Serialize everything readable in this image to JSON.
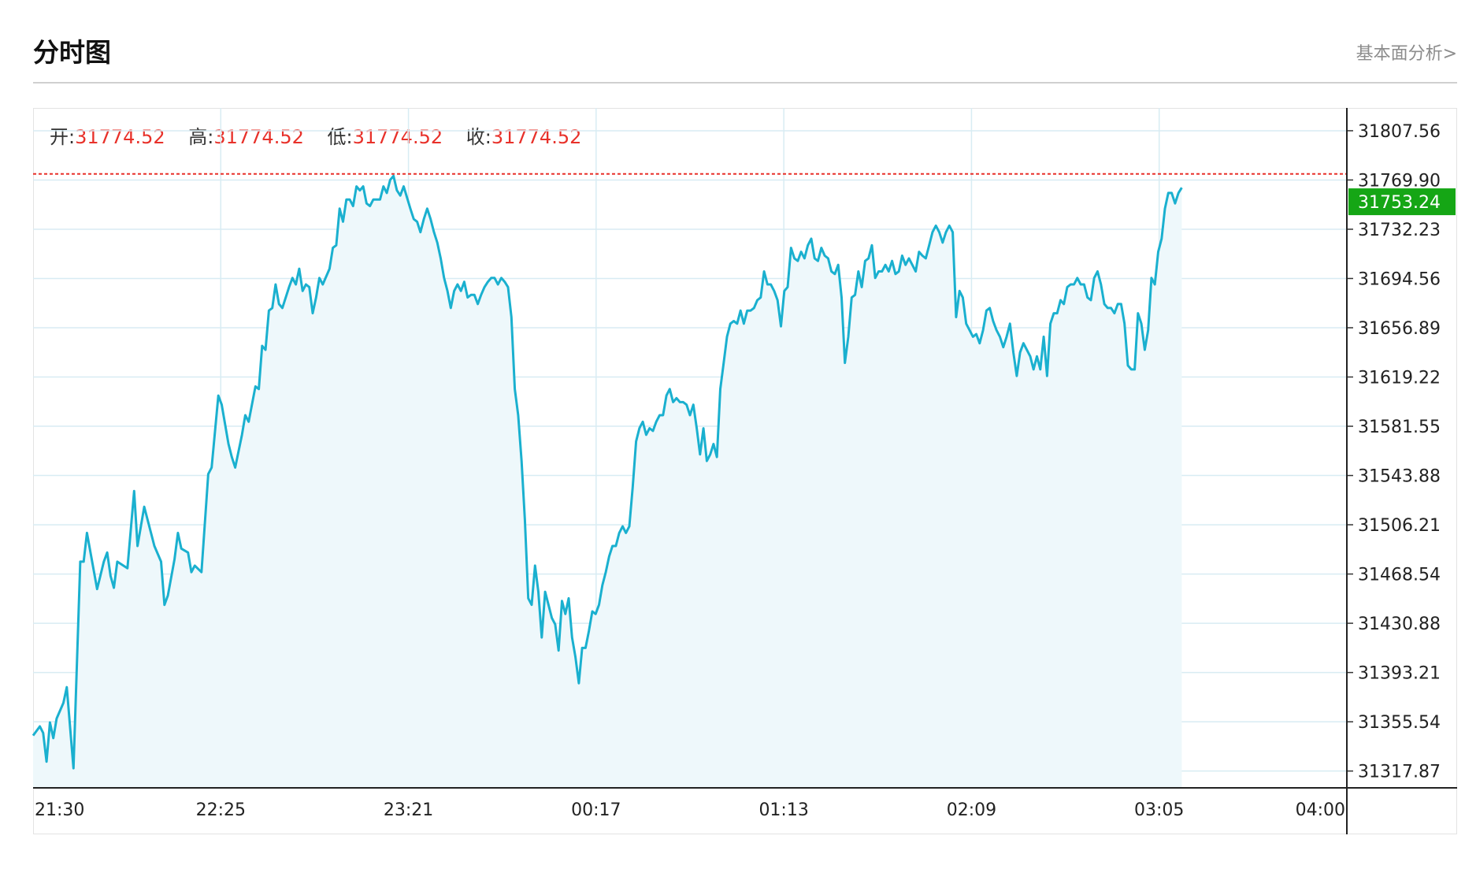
{
  "header": {
    "title": "分时图",
    "link_label": "基本面分析>"
  },
  "ohlc": [
    {
      "label": "开:",
      "value": "31774.52"
    },
    {
      "label": "高:",
      "value": "31774.52"
    },
    {
      "label": "低:",
      "value": "31774.52"
    },
    {
      "label": "收:",
      "value": "31774.52"
    }
  ],
  "colors": {
    "line": "#1ab0cf",
    "fill": "#eef8fb",
    "grid": "#d8ecf3",
    "ref_line": "#e8312a",
    "price_tag_bg": "#15a615",
    "value_text": "#e8312a"
  },
  "chart_data": {
    "type": "area",
    "reference_price": 31774.52,
    "current_price_label": "31753.24",
    "y_ticks": [
      "31807.56",
      "31769.90",
      "31732.23",
      "31694.56",
      "31656.89",
      "31619.22",
      "31581.55",
      "31543.88",
      "31506.21",
      "31468.54",
      "31430.88",
      "31393.21",
      "31355.54",
      "31317.87"
    ],
    "x_ticks": [
      "21:30",
      "22:25",
      "23:21",
      "00:17",
      "01:13",
      "02:09",
      "03:05",
      "04:00"
    ],
    "ylim": [
      31305,
      31825
    ],
    "x_range_minutes": [
      0,
      390
    ],
    "grid": true,
    "points": [
      [
        0,
        31345
      ],
      [
        2,
        31352
      ],
      [
        3,
        31347
      ],
      [
        4,
        31325
      ],
      [
        5,
        31355
      ],
      [
        6,
        31343
      ],
      [
        7,
        31358
      ],
      [
        9,
        31370
      ],
      [
        10,
        31382
      ],
      [
        12,
        31320
      ],
      [
        14,
        31478
      ],
      [
        15,
        31478
      ],
      [
        16,
        31500
      ],
      [
        19,
        31457
      ],
      [
        21,
        31478
      ],
      [
        22,
        31485
      ],
      [
        23,
        31467
      ],
      [
        24,
        31458
      ],
      [
        25,
        31478
      ],
      [
        28,
        31473
      ],
      [
        30,
        31532
      ],
      [
        31,
        31490
      ],
      [
        33,
        31520
      ],
      [
        35,
        31500
      ],
      [
        36,
        31490
      ],
      [
        38,
        31478
      ],
      [
        39,
        31445
      ],
      [
        40,
        31452
      ],
      [
        42,
        31480
      ],
      [
        43,
        31500
      ],
      [
        44,
        31488
      ],
      [
        46,
        31485
      ],
      [
        47,
        31470
      ],
      [
        48,
        31475
      ],
      [
        50,
        31470
      ],
      [
        52,
        31545
      ],
      [
        53,
        31550
      ],
      [
        55,
        31605
      ],
      [
        56,
        31598
      ],
      [
        58,
        31568
      ],
      [
        59,
        31558
      ],
      [
        60,
        31550
      ],
      [
        62,
        31575
      ],
      [
        63,
        31590
      ],
      [
        64,
        31585
      ],
      [
        66,
        31612
      ],
      [
        67,
        31610
      ],
      [
        68,
        31643
      ],
      [
        69,
        31640
      ],
      [
        70,
        31670
      ],
      [
        71,
        31672
      ],
      [
        72,
        31690
      ],
      [
        73,
        31675
      ],
      [
        74,
        31672
      ],
      [
        76,
        31688
      ],
      [
        77,
        31695
      ],
      [
        78,
        31690
      ],
      [
        79,
        31702
      ],
      [
        80,
        31685
      ],
      [
        81,
        31690
      ],
      [
        82,
        31688
      ],
      [
        83,
        31668
      ],
      [
        84,
        31680
      ],
      [
        85,
        31695
      ],
      [
        86,
        31690
      ],
      [
        88,
        31702
      ],
      [
        89,
        31718
      ],
      [
        90,
        31720
      ],
      [
        91,
        31748
      ],
      [
        92,
        31738
      ],
      [
        93,
        31755
      ],
      [
        94,
        31755
      ],
      [
        95,
        31750
      ],
      [
        96,
        31765
      ],
      [
        97,
        31762
      ],
      [
        98,
        31765
      ],
      [
        99,
        31752
      ],
      [
        100,
        31750
      ],
      [
        101,
        31755
      ],
      [
        103,
        31755
      ],
      [
        104,
        31765
      ],
      [
        105,
        31760
      ],
      [
        106,
        31770
      ],
      [
        107,
        31773
      ],
      [
        108,
        31762
      ],
      [
        109,
        31758
      ],
      [
        110,
        31765
      ],
      [
        112,
        31748
      ],
      [
        113,
        31740
      ],
      [
        114,
        31738
      ],
      [
        115,
        31730
      ],
      [
        116,
        31740
      ],
      [
        117,
        31748
      ],
      [
        118,
        31740
      ],
      [
        119,
        31730
      ],
      [
        120,
        31722
      ],
      [
        121,
        31710
      ],
      [
        122,
        31695
      ],
      [
        123,
        31685
      ],
      [
        124,
        31672
      ],
      [
        125,
        31685
      ],
      [
        126,
        31690
      ],
      [
        127,
        31685
      ],
      [
        128,
        31692
      ],
      [
        129,
        31680
      ],
      [
        130,
        31682
      ],
      [
        131,
        31682
      ],
      [
        132,
        31675
      ],
      [
        133,
        31682
      ],
      [
        134,
        31688
      ],
      [
        135,
        31692
      ],
      [
        136,
        31695
      ],
      [
        137,
        31695
      ],
      [
        138,
        31690
      ],
      [
        139,
        31695
      ],
      [
        140,
        31692
      ],
      [
        141,
        31688
      ],
      [
        142,
        31665
      ],
      [
        143,
        31610
      ],
      [
        144,
        31590
      ],
      [
        145,
        31555
      ],
      [
        146,
        31510
      ],
      [
        147,
        31450
      ],
      [
        148,
        31445
      ],
      [
        149,
        31475
      ],
      [
        150,
        31455
      ],
      [
        151,
        31420
      ],
      [
        152,
        31455
      ],
      [
        153,
        31445
      ],
      [
        154,
        31435
      ],
      [
        155,
        31430
      ],
      [
        156,
        31410
      ],
      [
        157,
        31448
      ],
      [
        158,
        31438
      ],
      [
        159,
        31450
      ],
      [
        160,
        31420
      ],
      [
        161,
        31405
      ],
      [
        162,
        31385
      ],
      [
        163,
        31412
      ],
      [
        164,
        31412
      ],
      [
        165,
        31425
      ],
      [
        166,
        31440
      ],
      [
        167,
        31438
      ],
      [
        168,
        31445
      ],
      [
        169,
        31460
      ],
      [
        170,
        31470
      ],
      [
        171,
        31482
      ],
      [
        172,
        31490
      ],
      [
        173,
        31490
      ],
      [
        174,
        31500
      ],
      [
        175,
        31505
      ],
      [
        176,
        31500
      ],
      [
        177,
        31505
      ],
      [
        178,
        31535
      ],
      [
        179,
        31570
      ],
      [
        180,
        31580
      ],
      [
        181,
        31585
      ],
      [
        182,
        31575
      ],
      [
        183,
        31580
      ],
      [
        184,
        31578
      ],
      [
        185,
        31585
      ],
      [
        186,
        31590
      ],
      [
        187,
        31590
      ],
      [
        188,
        31605
      ],
      [
        189,
        31610
      ],
      [
        190,
        31600
      ],
      [
        191,
        31603
      ],
      [
        192,
        31600
      ],
      [
        193,
        31600
      ],
      [
        194,
        31598
      ],
      [
        195,
        31590
      ],
      [
        196,
        31598
      ],
      [
        197,
        31580
      ],
      [
        198,
        31560
      ],
      [
        199,
        31580
      ],
      [
        200,
        31555
      ],
      [
        201,
        31560
      ],
      [
        202,
        31568
      ],
      [
        203,
        31558
      ],
      [
        204,
        31610
      ],
      [
        205,
        31630
      ],
      [
        206,
        31650
      ],
      [
        207,
        31660
      ],
      [
        208,
        31662
      ],
      [
        209,
        31660
      ],
      [
        210,
        31670
      ],
      [
        211,
        31660
      ],
      [
        212,
        31670
      ],
      [
        213,
        31670
      ],
      [
        214,
        31672
      ],
      [
        215,
        31678
      ],
      [
        216,
        31680
      ],
      [
        217,
        31700
      ],
      [
        218,
        31690
      ],
      [
        219,
        31690
      ],
      [
        220,
        31685
      ],
      [
        221,
        31678
      ],
      [
        222,
        31658
      ],
      [
        223,
        31685
      ],
      [
        224,
        31688
      ],
      [
        225,
        31718
      ],
      [
        226,
        31710
      ],
      [
        227,
        31708
      ],
      [
        228,
        31715
      ],
      [
        229,
        31710
      ],
      [
        230,
        31720
      ],
      [
        231,
        31725
      ],
      [
        232,
        31710
      ],
      [
        233,
        31708
      ],
      [
        234,
        31718
      ],
      [
        235,
        31712
      ],
      [
        236,
        31710
      ],
      [
        237,
        31700
      ],
      [
        238,
        31698
      ],
      [
        239,
        31705
      ],
      [
        240,
        31680
      ],
      [
        241,
        31630
      ],
      [
        242,
        31650
      ],
      [
        243,
        31680
      ],
      [
        244,
        31682
      ],
      [
        245,
        31700
      ],
      [
        246,
        31688
      ],
      [
        247,
        31708
      ],
      [
        248,
        31710
      ],
      [
        249,
        31720
      ],
      [
        250,
        31695
      ],
      [
        251,
        31700
      ],
      [
        252,
        31700
      ],
      [
        253,
        31705
      ],
      [
        254,
        31700
      ],
      [
        255,
        31708
      ],
      [
        256,
        31698
      ],
      [
        257,
        31700
      ],
      [
        258,
        31712
      ],
      [
        259,
        31705
      ],
      [
        260,
        31710
      ],
      [
        261,
        31705
      ],
      [
        262,
        31700
      ],
      [
        263,
        31715
      ],
      [
        264,
        31712
      ],
      [
        265,
        31710
      ],
      [
        266,
        31720
      ],
      [
        267,
        31730
      ],
      [
        268,
        31735
      ],
      [
        269,
        31730
      ],
      [
        270,
        31722
      ],
      [
        271,
        31730
      ],
      [
        272,
        31735
      ],
      [
        273,
        31730
      ],
      [
        274,
        31665
      ],
      [
        275,
        31685
      ],
      [
        276,
        31680
      ],
      [
        277,
        31660
      ],
      [
        278,
        31655
      ],
      [
        279,
        31650
      ],
      [
        280,
        31652
      ],
      [
        281,
        31645
      ],
      [
        282,
        31655
      ],
      [
        283,
        31670
      ],
      [
        284,
        31672
      ],
      [
        285,
        31662
      ],
      [
        286,
        31655
      ],
      [
        287,
        31650
      ],
      [
        288,
        31642
      ],
      [
        289,
        31650
      ],
      [
        290,
        31660
      ],
      [
        291,
        31638
      ],
      [
        292,
        31620
      ],
      [
        293,
        31638
      ],
      [
        294,
        31645
      ],
      [
        295,
        31640
      ],
      [
        296,
        31635
      ],
      [
        297,
        31625
      ],
      [
        298,
        31635
      ],
      [
        299,
        31625
      ],
      [
        300,
        31650
      ],
      [
        301,
        31620
      ],
      [
        302,
        31660
      ],
      [
        303,
        31668
      ],
      [
        304,
        31668
      ],
      [
        305,
        31678
      ],
      [
        306,
        31675
      ],
      [
        307,
        31688
      ],
      [
        308,
        31690
      ],
      [
        309,
        31690
      ],
      [
        310,
        31695
      ],
      [
        311,
        31690
      ],
      [
        312,
        31690
      ],
      [
        313,
        31680
      ],
      [
        314,
        31678
      ],
      [
        315,
        31695
      ],
      [
        316,
        31700
      ],
      [
        317,
        31690
      ],
      [
        318,
        31675
      ],
      [
        319,
        31672
      ],
      [
        320,
        31672
      ],
      [
        321,
        31668
      ],
      [
        322,
        31675
      ],
      [
        323,
        31675
      ],
      [
        324,
        31660
      ],
      [
        325,
        31628
      ],
      [
        326,
        31625
      ],
      [
        327,
        31625
      ],
      [
        328,
        31668
      ],
      [
        329,
        31660
      ],
      [
        330,
        31640
      ],
      [
        331,
        31655
      ],
      [
        332,
        31695
      ],
      [
        333,
        31690
      ],
      [
        334,
        31715
      ],
      [
        335,
        31725
      ],
      [
        336,
        31748
      ],
      [
        337,
        31760
      ],
      [
        338,
        31760
      ],
      [
        339,
        31752
      ],
      [
        340,
        31760
      ],
      [
        341,
        31764
      ]
    ]
  }
}
